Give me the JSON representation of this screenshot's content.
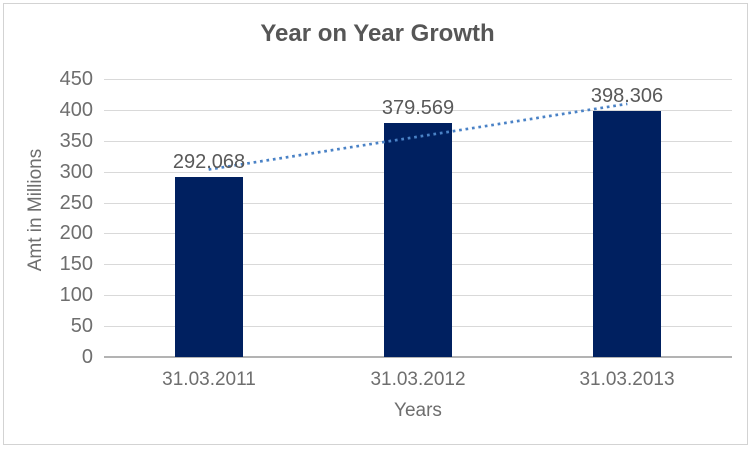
{
  "chart_data": {
    "type": "bar",
    "title": "Year on Year Growth",
    "xlabel": "Years",
    "ylabel": "Amt in Millions",
    "categories": [
      "31.03.2011",
      "31.03.2012",
      "31.03.2013"
    ],
    "series": [
      {
        "name": "Amt in Millions",
        "values": [
          292.068,
          379.569,
          398.306
        ]
      }
    ],
    "data_labels": [
      "292.068",
      "379.569",
      "398.306"
    ],
    "yticks": [
      0,
      50,
      100,
      150,
      200,
      250,
      300,
      350,
      400,
      450
    ],
    "ylim": [
      0,
      450
    ],
    "grid": "horizontal",
    "legend": "none",
    "trendline": {
      "type": "linear",
      "style": "dotted"
    },
    "colors": {
      "bar": "#002060",
      "trendline": "#4A82C6",
      "gridline": "#D9D9D9",
      "axis_line": "#B3B3B3",
      "title_text": "#565656",
      "data_label_text": "#595959",
      "tick_text": "#6E6E6E",
      "axis_title_text": "#6E6E6E",
      "border": "#D3D3D3"
    }
  }
}
